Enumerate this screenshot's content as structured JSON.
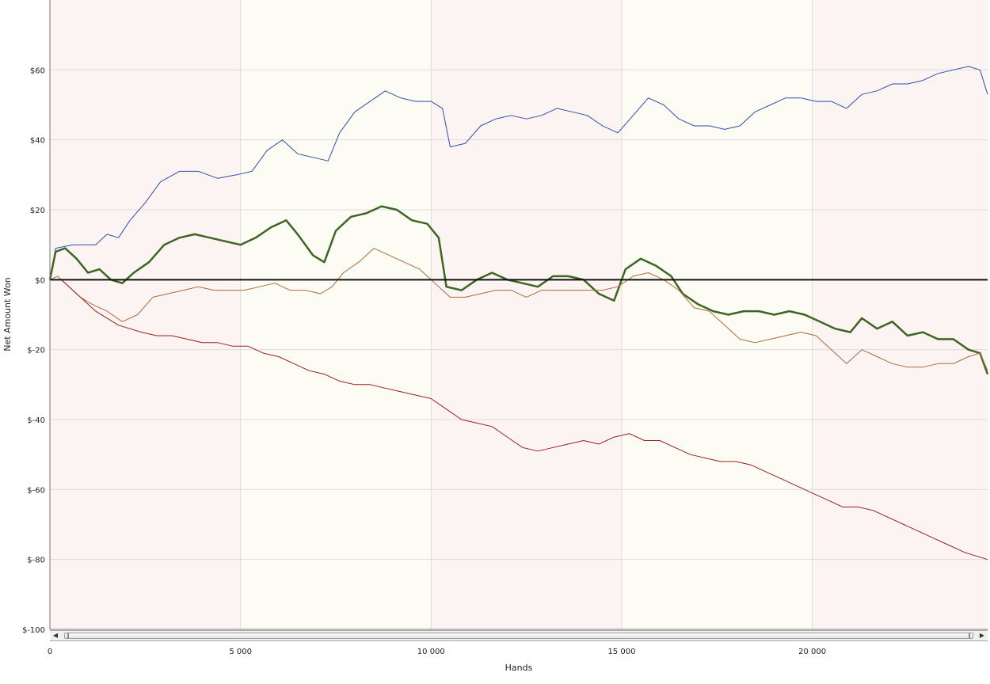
{
  "chart_data": {
    "type": "line",
    "title": "",
    "xlabel": "Hands",
    "ylabel": "Net Amount Won",
    "xlim": [
      0,
      24600
    ],
    "ylim": [
      -100,
      80
    ],
    "x_ticks": [
      0,
      5000,
      10000,
      15000,
      20000
    ],
    "x_tick_labels": [
      "0",
      "5 000",
      "10 000",
      "15 000",
      "20 000"
    ],
    "y_ticks": [
      60,
      40,
      20,
      0,
      -20,
      -40,
      -60,
      -80,
      -100
    ],
    "y_tick_labels": [
      "$60",
      "$40",
      "$20",
      "$0",
      "$-20",
      "$-40",
      "$-60",
      "$-80",
      "$-100"
    ],
    "grid": true,
    "zero_line": true,
    "bands": [
      {
        "from": 0,
        "to": 5000,
        "color": "#fcf4f2"
      },
      {
        "from": 5000,
        "to": 10000,
        "color": "#fcfcf5"
      },
      {
        "from": 10000,
        "to": 15000,
        "color": "#fcf4f2"
      },
      {
        "from": 15000,
        "to": 20000,
        "color": "#fcfcf5"
      },
      {
        "from": 20000,
        "to": 24600,
        "color": "#fcf4f2"
      }
    ],
    "series": [
      {
        "color": "#2e4fa8",
        "width": 1,
        "points": [
          [
            0,
            0
          ],
          [
            150,
            9
          ],
          [
            600,
            10
          ],
          [
            1200,
            10
          ],
          [
            1500,
            13
          ],
          [
            1800,
            12
          ],
          [
            2100,
            17
          ],
          [
            2500,
            22
          ],
          [
            2900,
            28
          ],
          [
            3400,
            31
          ],
          [
            3900,
            31
          ],
          [
            4400,
            29
          ],
          [
            4900,
            30
          ],
          [
            5300,
            31
          ],
          [
            5700,
            37
          ],
          [
            6100,
            40
          ],
          [
            6500,
            36
          ],
          [
            6900,
            35
          ],
          [
            7300,
            34
          ],
          [
            7600,
            42
          ],
          [
            8000,
            48
          ],
          [
            8400,
            51
          ],
          [
            8800,
            54
          ],
          [
            9200,
            52
          ],
          [
            9600,
            51
          ],
          [
            10000,
            51
          ],
          [
            10300,
            49
          ],
          [
            10500,
            38
          ],
          [
            10900,
            39
          ],
          [
            11300,
            44
          ],
          [
            11700,
            46
          ],
          [
            12100,
            47
          ],
          [
            12500,
            46
          ],
          [
            12900,
            47
          ],
          [
            13300,
            49
          ],
          [
            13700,
            48
          ],
          [
            14100,
            47
          ],
          [
            14500,
            44
          ],
          [
            14900,
            42
          ],
          [
            15300,
            47
          ],
          [
            15700,
            52
          ],
          [
            16100,
            50
          ],
          [
            16500,
            46
          ],
          [
            16900,
            44
          ],
          [
            17300,
            44
          ],
          [
            17700,
            43
          ],
          [
            18100,
            44
          ],
          [
            18500,
            48
          ],
          [
            18900,
            50
          ],
          [
            19300,
            52
          ],
          [
            19700,
            52
          ],
          [
            20100,
            51
          ],
          [
            20500,
            51
          ],
          [
            20900,
            49
          ],
          [
            21300,
            53
          ],
          [
            21700,
            54
          ],
          [
            22100,
            56
          ],
          [
            22500,
            56
          ],
          [
            22900,
            57
          ],
          [
            23300,
            59
          ],
          [
            23700,
            60
          ],
          [
            24100,
            61
          ],
          [
            24400,
            60
          ],
          [
            24600,
            53
          ]
        ]
      },
      {
        "color": "#3e6524",
        "width": 2.5,
        "points": [
          [
            0,
            0
          ],
          [
            150,
            8
          ],
          [
            400,
            9
          ],
          [
            700,
            6
          ],
          [
            1000,
            2
          ],
          [
            1300,
            3
          ],
          [
            1600,
            0
          ],
          [
            1900,
            -1
          ],
          [
            2200,
            2
          ],
          [
            2600,
            5
          ],
          [
            3000,
            10
          ],
          [
            3400,
            12
          ],
          [
            3800,
            13
          ],
          [
            4200,
            12
          ],
          [
            4600,
            11
          ],
          [
            5000,
            10
          ],
          [
            5400,
            12
          ],
          [
            5800,
            15
          ],
          [
            6200,
            17
          ],
          [
            6500,
            13
          ],
          [
            6900,
            7
          ],
          [
            7200,
            5
          ],
          [
            7500,
            14
          ],
          [
            7900,
            18
          ],
          [
            8300,
            19
          ],
          [
            8700,
            21
          ],
          [
            9100,
            20
          ],
          [
            9500,
            17
          ],
          [
            9900,
            16
          ],
          [
            10200,
            12
          ],
          [
            10400,
            -2
          ],
          [
            10800,
            -3
          ],
          [
            11200,
            0
          ],
          [
            11600,
            2
          ],
          [
            12000,
            0
          ],
          [
            12400,
            -1
          ],
          [
            12800,
            -2
          ],
          [
            13200,
            1
          ],
          [
            13600,
            1
          ],
          [
            14000,
            0
          ],
          [
            14400,
            -4
          ],
          [
            14800,
            -6
          ],
          [
            15100,
            3
          ],
          [
            15500,
            6
          ],
          [
            15900,
            4
          ],
          [
            16300,
            1
          ],
          [
            16600,
            -4
          ],
          [
            17000,
            -7
          ],
          [
            17400,
            -9
          ],
          [
            17800,
            -10
          ],
          [
            18200,
            -9
          ],
          [
            18600,
            -9
          ],
          [
            19000,
            -10
          ],
          [
            19400,
            -9
          ],
          [
            19800,
            -10
          ],
          [
            20200,
            -12
          ],
          [
            20600,
            -14
          ],
          [
            21000,
            -15
          ],
          [
            21300,
            -11
          ],
          [
            21700,
            -14
          ],
          [
            22100,
            -12
          ],
          [
            22500,
            -16
          ],
          [
            22900,
            -15
          ],
          [
            23300,
            -17
          ],
          [
            23700,
            -17
          ],
          [
            24100,
            -20
          ],
          [
            24400,
            -21
          ],
          [
            24600,
            -27
          ]
        ]
      },
      {
        "color": "#b06a3a",
        "width": 1,
        "points": [
          [
            0,
            0
          ],
          [
            200,
            1
          ],
          [
            500,
            -2
          ],
          [
            800,
            -5
          ],
          [
            1100,
            -7
          ],
          [
            1500,
            -9
          ],
          [
            1900,
            -12
          ],
          [
            2300,
            -10
          ],
          [
            2700,
            -5
          ],
          [
            3100,
            -4
          ],
          [
            3500,
            -3
          ],
          [
            3900,
            -2
          ],
          [
            4300,
            -3
          ],
          [
            4700,
            -3
          ],
          [
            5100,
            -3
          ],
          [
            5500,
            -2
          ],
          [
            5900,
            -1
          ],
          [
            6300,
            -3
          ],
          [
            6700,
            -3
          ],
          [
            7100,
            -4
          ],
          [
            7400,
            -2
          ],
          [
            7700,
            2
          ],
          [
            8100,
            5
          ],
          [
            8500,
            9
          ],
          [
            8900,
            7
          ],
          [
            9300,
            5
          ],
          [
            9700,
            3
          ],
          [
            10100,
            -1
          ],
          [
            10500,
            -5
          ],
          [
            10900,
            -5
          ],
          [
            11300,
            -4
          ],
          [
            11700,
            -3
          ],
          [
            12100,
            -3
          ],
          [
            12500,
            -5
          ],
          [
            12900,
            -3
          ],
          [
            13300,
            -3
          ],
          [
            13700,
            -3
          ],
          [
            14100,
            -3
          ],
          [
            14500,
            -3
          ],
          [
            14900,
            -2
          ],
          [
            15300,
            1
          ],
          [
            15700,
            2
          ],
          [
            16100,
            0
          ],
          [
            16500,
            -3
          ],
          [
            16900,
            -8
          ],
          [
            17300,
            -9
          ],
          [
            17700,
            -13
          ],
          [
            18100,
            -17
          ],
          [
            18500,
            -18
          ],
          [
            18900,
            -17
          ],
          [
            19300,
            -16
          ],
          [
            19700,
            -15
          ],
          [
            20100,
            -16
          ],
          [
            20500,
            -20
          ],
          [
            20900,
            -24
          ],
          [
            21300,
            -20
          ],
          [
            21700,
            -22
          ],
          [
            22100,
            -24
          ],
          [
            22500,
            -25
          ],
          [
            22900,
            -25
          ],
          [
            23300,
            -24
          ],
          [
            23700,
            -24
          ],
          [
            24100,
            -22
          ],
          [
            24400,
            -21
          ],
          [
            24600,
            -26
          ]
        ]
      },
      {
        "color": "#9a1f1f",
        "width": 1,
        "points": [
          [
            0,
            0
          ],
          [
            300,
            0
          ],
          [
            600,
            -3
          ],
          [
            900,
            -6
          ],
          [
            1200,
            -9
          ],
          [
            1500,
            -11
          ],
          [
            1800,
            -13
          ],
          [
            2100,
            -14
          ],
          [
            2400,
            -15
          ],
          [
            2800,
            -16
          ],
          [
            3200,
            -16
          ],
          [
            3600,
            -17
          ],
          [
            4000,
            -18
          ],
          [
            4400,
            -18
          ],
          [
            4800,
            -19
          ],
          [
            5200,
            -19
          ],
          [
            5600,
            -21
          ],
          [
            6000,
            -22
          ],
          [
            6400,
            -24
          ],
          [
            6800,
            -26
          ],
          [
            7200,
            -27
          ],
          [
            7600,
            -29
          ],
          [
            8000,
            -30
          ],
          [
            8400,
            -30
          ],
          [
            8800,
            -31
          ],
          [
            9200,
            -32
          ],
          [
            9600,
            -33
          ],
          [
            10000,
            -34
          ],
          [
            10400,
            -37
          ],
          [
            10800,
            -40
          ],
          [
            11200,
            -41
          ],
          [
            11600,
            -42
          ],
          [
            12000,
            -45
          ],
          [
            12400,
            -48
          ],
          [
            12800,
            -49
          ],
          [
            13200,
            -48
          ],
          [
            13600,
            -47
          ],
          [
            14000,
            -46
          ],
          [
            14400,
            -47
          ],
          [
            14800,
            -45
          ],
          [
            15200,
            -44
          ],
          [
            15600,
            -46
          ],
          [
            16000,
            -46
          ],
          [
            16400,
            -48
          ],
          [
            16800,
            -50
          ],
          [
            17200,
            -51
          ],
          [
            17600,
            -52
          ],
          [
            18000,
            -52
          ],
          [
            18400,
            -53
          ],
          [
            18800,
            -55
          ],
          [
            19200,
            -57
          ],
          [
            19600,
            -59
          ],
          [
            20000,
            -61
          ],
          [
            20400,
            -63
          ],
          [
            20800,
            -65
          ],
          [
            21200,
            -65
          ],
          [
            21600,
            -66
          ],
          [
            22000,
            -68
          ],
          [
            22400,
            -70
          ],
          [
            22800,
            -72
          ],
          [
            23200,
            -74
          ],
          [
            23600,
            -76
          ],
          [
            24000,
            -78
          ],
          [
            24300,
            -79
          ],
          [
            24600,
            -80
          ]
        ]
      }
    ]
  },
  "scrollbar": {
    "left_arrow": "◀",
    "right_arrow": "▶"
  }
}
